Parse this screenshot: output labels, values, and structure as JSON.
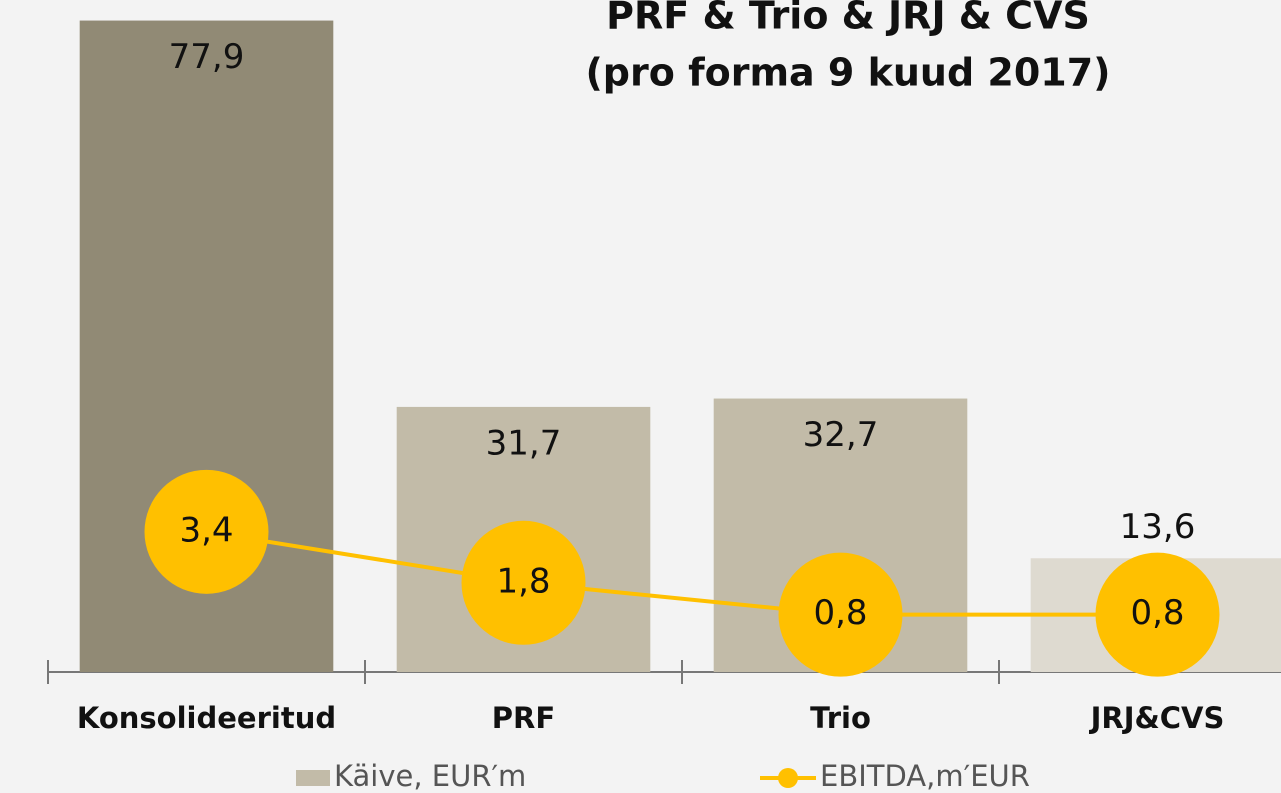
{
  "chart_data": {
    "type": "bar",
    "title": "PRF & Trio & JRJ & CVS",
    "subtitle": "(pro forma 9 kuud 2017)",
    "categories": [
      "Konsolideeritud",
      "PRF",
      "Trio",
      "JRJ&CVS"
    ],
    "ylim": [
      0,
      80
    ],
    "y2lim": [
      -1,
      20
    ],
    "series": [
      {
        "name": "Käive, EUR′m",
        "type": "bar",
        "color": "#c2bba8",
        "colors": [
          "#918a75",
          "#c2bba8",
          "#c2bba8",
          "#dedad0"
        ],
        "values": [
          77.9,
          31.7,
          32.7,
          13.6
        ],
        "value_labels": [
          "77,9",
          "31,7",
          "32,7",
          "13,6"
        ]
      },
      {
        "name": "EBITDA,m′EUR",
        "type": "line",
        "axis": "y2",
        "color": "#ffc000",
        "values": [
          3.4,
          1.8,
          0.8,
          0.8
        ],
        "value_labels": [
          "3,4",
          "1,8",
          "0,8",
          "0,8"
        ]
      }
    ],
    "legend": "bottom"
  }
}
